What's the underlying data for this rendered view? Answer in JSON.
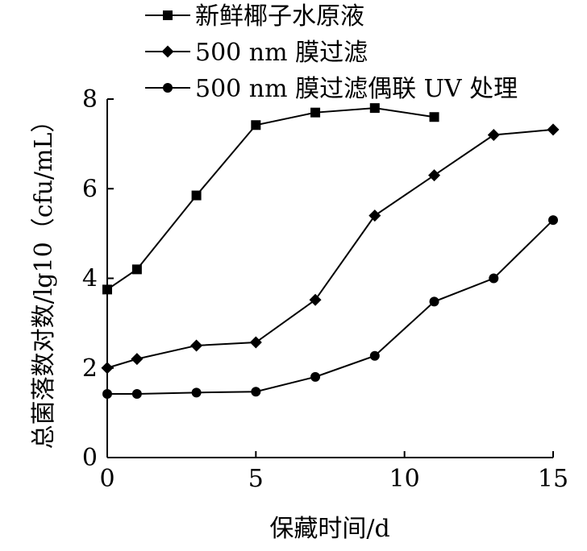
{
  "chart_data": {
    "type": "line",
    "xlabel": "保藏时间/d",
    "ylabel": "总菌落数对数/lg10（cfu/mL）",
    "xlim": [
      0,
      15
    ],
    "ylim": [
      0,
      8
    ],
    "xticks": [
      0,
      5,
      10,
      15
    ],
    "yticks": [
      0,
      2,
      4,
      6,
      8
    ],
    "grid": false,
    "legend_position": "top",
    "series": [
      {
        "name": "新鲜椰子水原液",
        "marker": "square",
        "x": [
          0,
          1,
          3,
          5,
          7,
          9,
          11
        ],
        "values": [
          3.75,
          4.2,
          5.85,
          7.42,
          7.7,
          7.8,
          7.6
        ]
      },
      {
        "name": "500 nm 膜过滤",
        "marker": "diamond",
        "x": [
          0,
          1,
          3,
          5,
          7,
          9,
          11,
          13,
          15
        ],
        "values": [
          2.0,
          2.2,
          2.5,
          2.57,
          3.52,
          5.4,
          6.3,
          7.2,
          7.32
        ]
      },
      {
        "name": "500 nm 膜过滤偶联 UV 处理",
        "marker": "circle",
        "x": [
          0,
          1,
          3,
          5,
          7,
          9,
          11,
          13,
          15
        ],
        "values": [
          1.42,
          1.42,
          1.45,
          1.47,
          1.8,
          2.27,
          3.48,
          4.0,
          5.3
        ]
      }
    ]
  }
}
